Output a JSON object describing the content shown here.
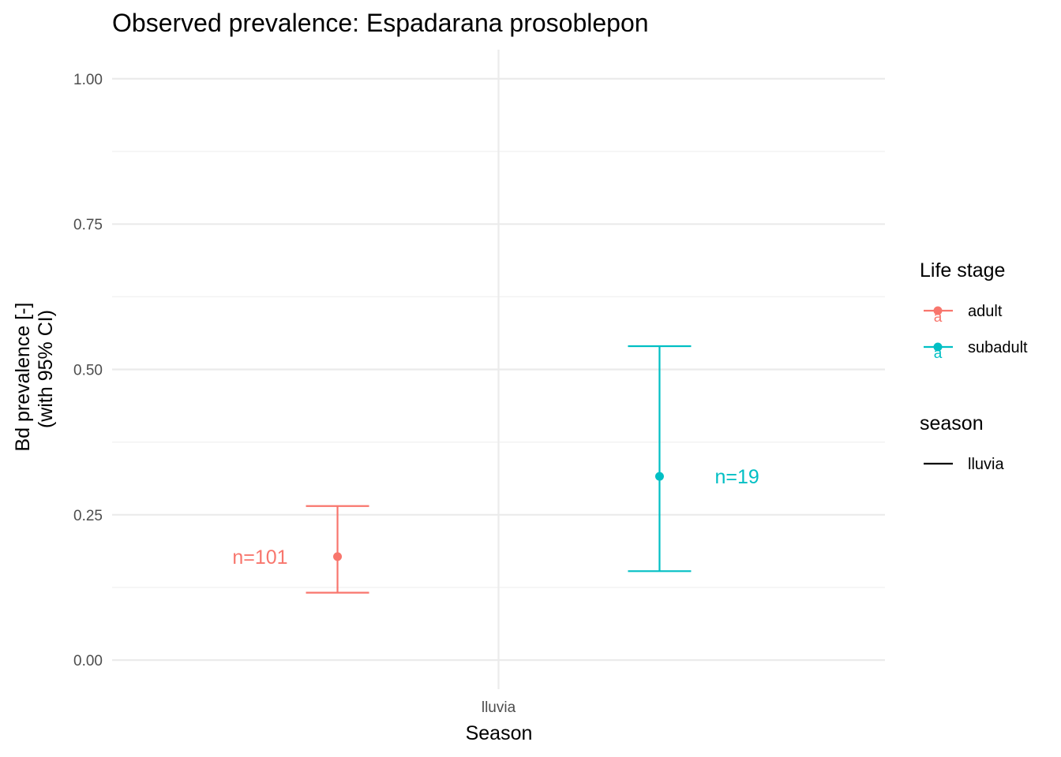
{
  "chart_data": {
    "type": "errorbar",
    "title": "Observed prevalence: Espadarana prosoblepon",
    "xlabel": "Season",
    "ylabel_lines": [
      "Bd prevalence [-]",
      "(with 95% CI)"
    ],
    "categories": [
      "lluvia"
    ],
    "ylim": [
      -0.05,
      1.05
    ],
    "y_ticks": [
      0,
      0.25,
      0.5,
      0.75,
      1
    ],
    "y_tick_labels": [
      "0.00",
      "0.25",
      "0.50",
      "0.75",
      "1.00"
    ],
    "y_minor_ticks": [
      0.125,
      0.375,
      0.625,
      0.875
    ],
    "grid": true,
    "series": [
      {
        "name": "adult",
        "color": "#F8766D",
        "category": "lluvia",
        "estimate": 0.178,
        "lower": 0.116,
        "upper": 0.265,
        "annotation": "n=101"
      },
      {
        "name": "subadult",
        "color": "#00BFC4",
        "category": "lluvia",
        "estimate": 0.316,
        "lower": 0.153,
        "upper": 0.54,
        "annotation": "n=19"
      }
    ],
    "legend": {
      "placement": "right",
      "groups": [
        {
          "title": "Life stage",
          "keys": [
            {
              "label": "adult",
              "color": "#F8766D",
              "glyph": "a"
            },
            {
              "label": "subadult",
              "color": "#00BFC4",
              "glyph": "a"
            }
          ]
        },
        {
          "title": "season",
          "keys": [
            {
              "label": "lluvia",
              "color": "#000000"
            }
          ]
        }
      ]
    }
  }
}
